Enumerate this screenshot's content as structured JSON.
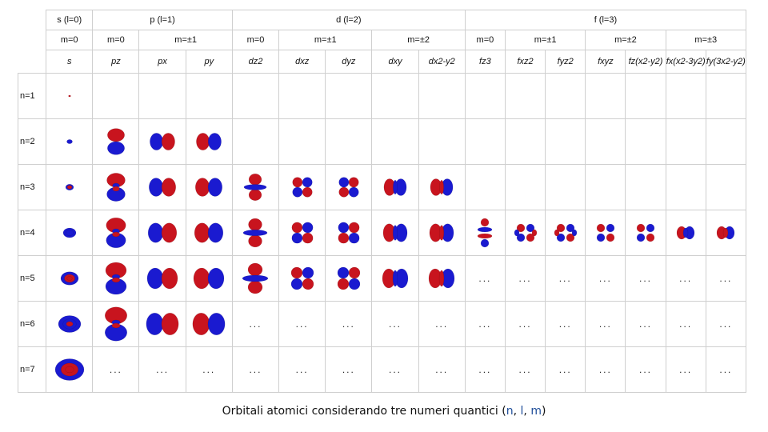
{
  "colors": {
    "positive_lobe": "#c8141e",
    "negative_lobe": "#1a1ad0",
    "grid": "#cfcfcf",
    "caption_accent": "#1f4e9a"
  },
  "header_l": {
    "s": "s (l=0)",
    "p": "p (l=1)",
    "d": "d (l=2)",
    "f": "f (l=3)"
  },
  "header_m": [
    "m=0",
    "m=0",
    "m=±1",
    "m=0",
    "m=±1",
    "m=±2",
    "m=0",
    "m=±1",
    "m=±2",
    "m=±3"
  ],
  "orbital_names": [
    "s",
    "pz",
    "px",
    "py",
    "dz2",
    "dxz",
    "dyz",
    "dxy",
    "dx2-y2",
    "fz3",
    "fxz2",
    "fyz2",
    "fxyz",
    "fz(x2-y2)",
    "fx(x2-3y2)",
    "fy(3x2-y2)"
  ],
  "row_labels": [
    "n=1",
    "n=2",
    "n=3",
    "n=4",
    "n=5",
    "n=6",
    "n=7"
  ],
  "ellipsis": "...",
  "caption": {
    "text": "Orbitali atomici considerando tre numeri quantici (",
    "n": "n",
    "sep1": ", ",
    "l": "l",
    "sep2": ", ",
    "m": "m",
    "close": ")"
  },
  "orbital_grid": [
    [
      "s",
      "",
      "",
      "",
      "",
      "",
      "",
      "",
      "",
      "",
      "",
      "",
      "",
      "",
      "",
      ""
    ],
    [
      "s",
      "pz",
      "px",
      "py",
      "",
      "",
      "",
      "",
      "",
      "",
      "",
      "",
      "",
      "",
      "",
      ""
    ],
    [
      "s",
      "pz",
      "px",
      "py",
      "dz2",
      "dxz",
      "dyz",
      "dxy",
      "dx2-y2",
      "",
      "",
      "",
      "",
      "",
      "",
      ""
    ],
    [
      "s",
      "pz",
      "px",
      "py",
      "dz2",
      "dxz",
      "dyz",
      "dxy",
      "dx2-y2",
      "fz3",
      "fxz2",
      "fyz2",
      "fxyz",
      "fz(x2-y2)",
      "fx(x2-3y2)",
      "fy(3x2-y2)"
    ],
    [
      "s",
      "pz",
      "px",
      "py",
      "dz2",
      "dxz",
      "dyz",
      "dxy",
      "dx2-y2",
      "...",
      "...",
      "...",
      "...",
      "...",
      "...",
      "..."
    ],
    [
      "s",
      "pz",
      "px",
      "py",
      "...",
      "...",
      "...",
      "...",
      "...",
      "...",
      "...",
      "...",
      "...",
      "...",
      "...",
      "..."
    ],
    [
      "s",
      "...",
      "...",
      "...",
      "...",
      "...",
      "...",
      "...",
      "...",
      "...",
      "...",
      "...",
      "...",
      "...",
      "...",
      "..."
    ]
  ]
}
